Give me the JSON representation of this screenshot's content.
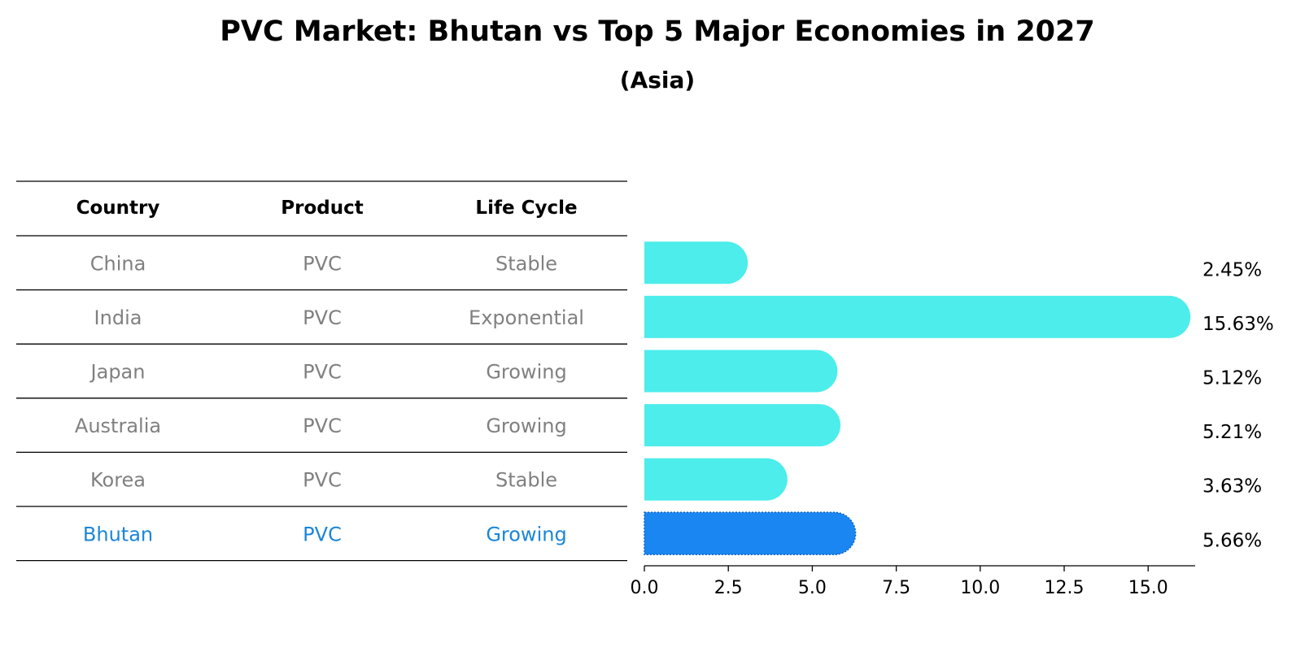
{
  "colors": {
    "normal_bar": "#4cedeb",
    "highlight_bar": "#1a86f2",
    "normal_text": "#808080",
    "highlight_text": "#1a86d9",
    "header_text": "#000000"
  },
  "chart_data": {
    "type": "bar",
    "orientation": "horizontal",
    "title": "PVC Market: Bhutan vs Top 5 Major Economies in 2027",
    "subtitle": "(Asia)",
    "xlabel": "",
    "ylabel": "",
    "xlim": [
      0,
      16.4
    ],
    "x_ticks": [
      0.0,
      2.5,
      5.0,
      7.5,
      10.0,
      12.5,
      15.0
    ],
    "x_tick_labels": [
      "0.0",
      "2.5",
      "5.0",
      "7.5",
      "10.0",
      "12.5",
      "15.0"
    ],
    "grid": false,
    "categories": [
      "China",
      "India",
      "Japan",
      "Australia",
      "Korea",
      "Bhutan"
    ],
    "values": [
      2.45,
      15.63,
      5.12,
      5.21,
      3.63,
      5.66
    ],
    "value_labels": [
      "2.45%",
      "15.63%",
      "5.12%",
      "5.21%",
      "3.63%",
      "5.66%"
    ],
    "highlight": "Bhutan"
  },
  "table": {
    "headers": [
      "Country",
      "Product",
      "Life Cycle"
    ],
    "rows": [
      {
        "country": "China",
        "product": "PVC",
        "life_cycle": "Stable",
        "highlight": false
      },
      {
        "country": "India",
        "product": "PVC",
        "life_cycle": "Exponential",
        "highlight": false
      },
      {
        "country": "Japan",
        "product": "PVC",
        "life_cycle": "Growing",
        "highlight": false
      },
      {
        "country": "Australia",
        "product": "PVC",
        "life_cycle": "Growing",
        "highlight": false
      },
      {
        "country": "Korea",
        "product": "PVC",
        "life_cycle": "Stable",
        "highlight": false
      },
      {
        "country": "Bhutan",
        "product": "PVC",
        "life_cycle": "Growing",
        "highlight": true
      }
    ]
  }
}
